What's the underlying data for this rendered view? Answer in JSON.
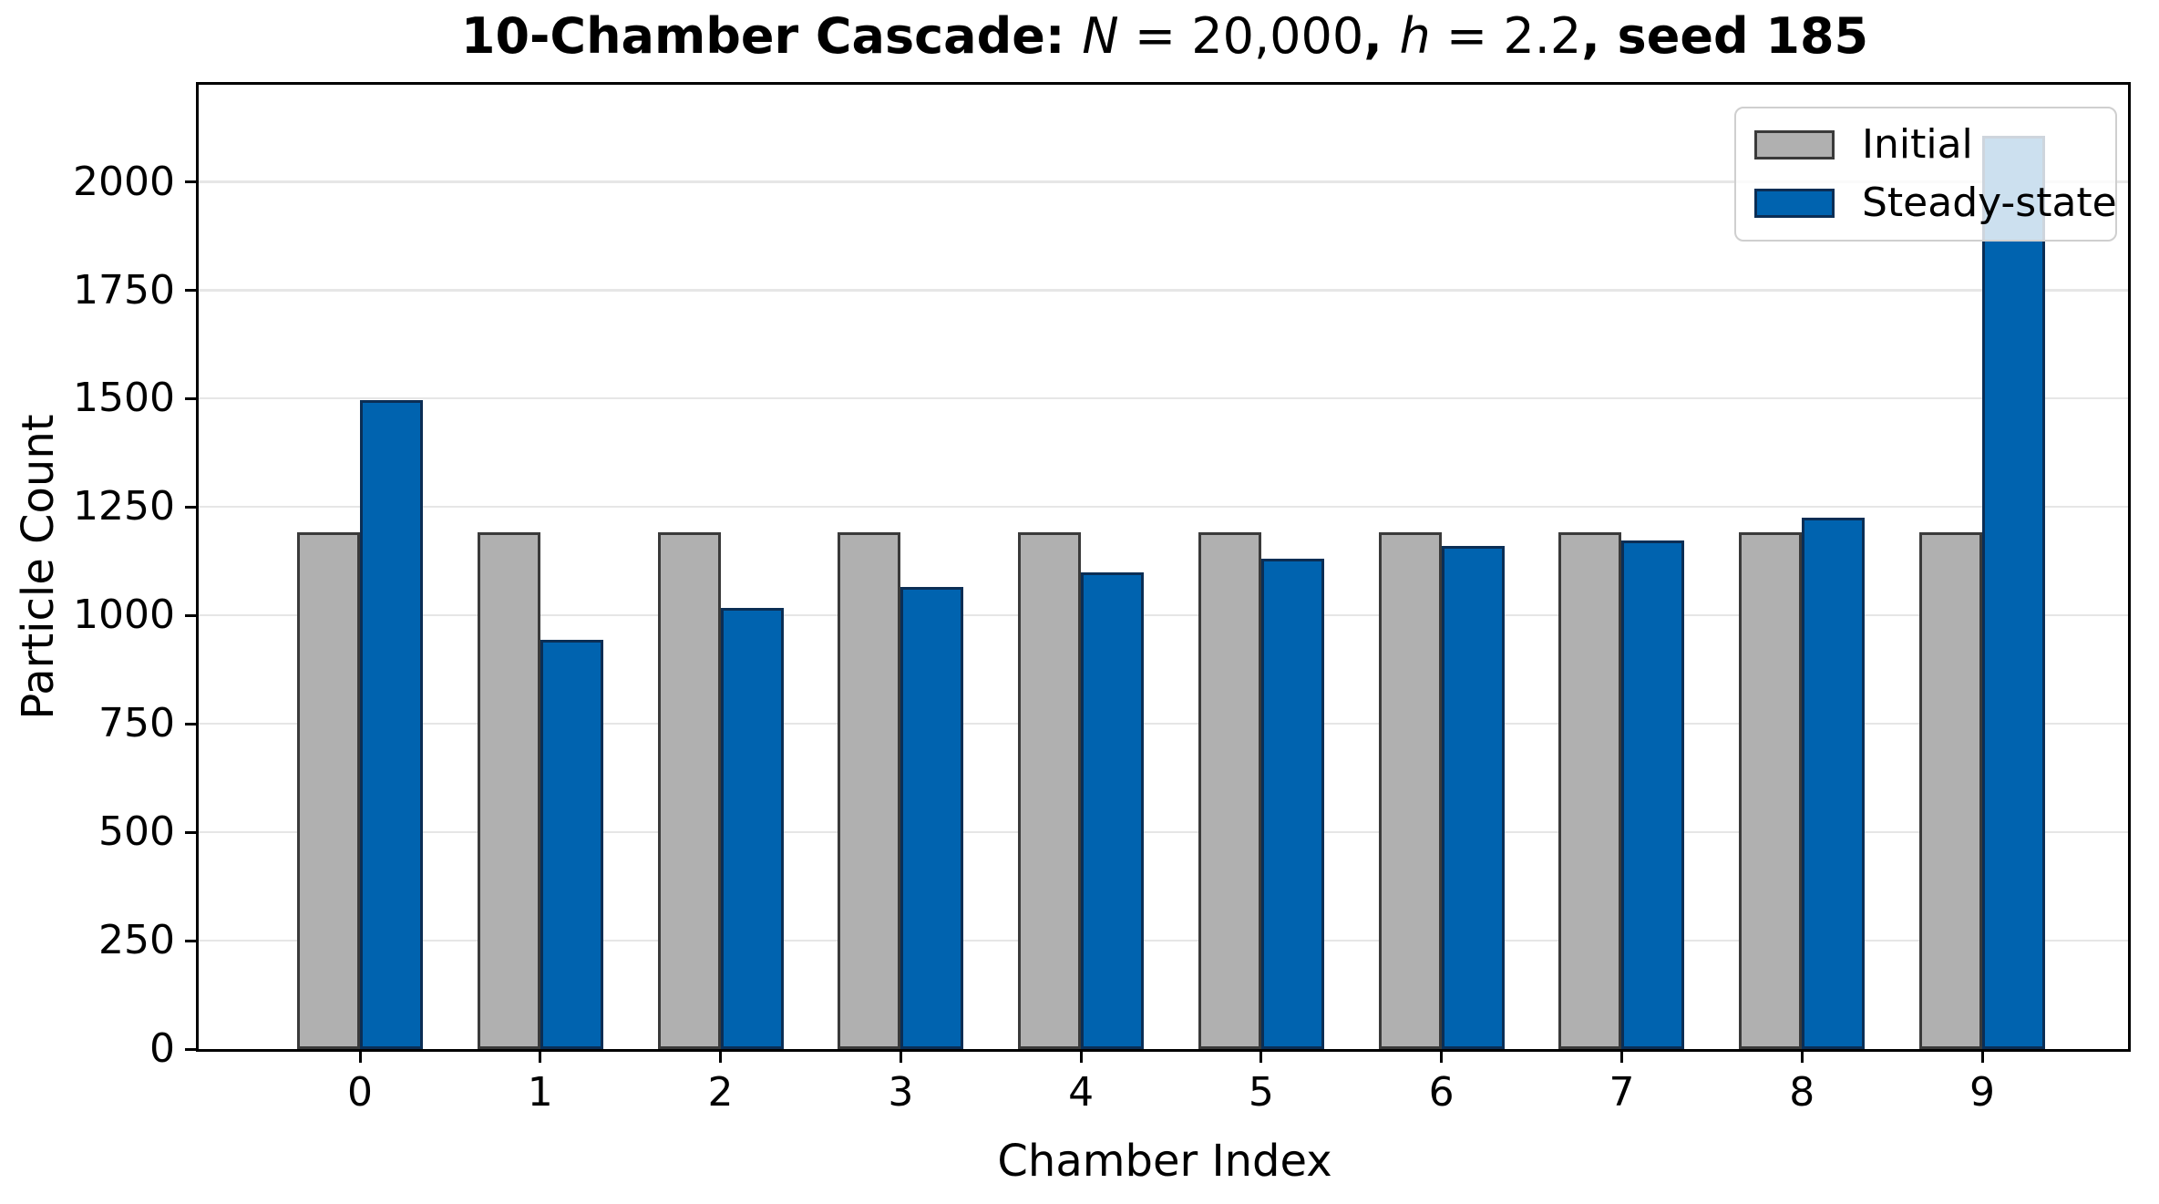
{
  "title": {
    "text": "10-Chamber Cascade: N = 20,000, h = 2.2, seed 185",
    "segments": [
      {
        "text": "10-Chamber Cascade: ",
        "style": "bold"
      },
      {
        "text": "N",
        "style": "italic"
      },
      {
        "text": " = 20,000",
        "style": "regular"
      },
      {
        "text": ", ",
        "style": "bold"
      },
      {
        "text": "h",
        "style": "italic"
      },
      {
        "text": " = 2.2",
        "style": "regular"
      },
      {
        "text": ", seed 185",
        "style": "bold"
      }
    ]
  },
  "axes": {
    "xlabel": "Chamber Index",
    "ylabel": "Particle Count",
    "x_tick_labels": [
      "0",
      "1",
      "2",
      "3",
      "4",
      "5",
      "6",
      "7",
      "8",
      "9"
    ],
    "y_ticks": [
      0,
      250,
      500,
      750,
      1000,
      1250,
      1500,
      1750,
      2000
    ],
    "ylim": [
      0,
      2224
    ],
    "grid": "horizontal major, light gray"
  },
  "legend": {
    "position": "upper right",
    "items": [
      {
        "label": "Initial",
        "color": "#b0b0b0",
        "edge_color": "#3a3a3a"
      },
      {
        "label": "Steady-state",
        "color": "#0063af",
        "edge_color": "#0b2e55"
      }
    ]
  },
  "chart_data": {
    "type": "bar",
    "categories": [
      0,
      1,
      2,
      3,
      4,
      5,
      6,
      7,
      8,
      9
    ],
    "series": [
      {
        "name": "Initial",
        "color": "#b0b0b0",
        "edge_color": "#3a3a3a",
        "values": [
          1192,
          1192,
          1192,
          1192,
          1192,
          1192,
          1192,
          1192,
          1192,
          1192
        ]
      },
      {
        "name": "Steady-state",
        "color": "#0063af",
        "edge_color": "#0b2e55",
        "values": [
          1497,
          943,
          1017,
          1066,
          1099,
          1130,
          1160,
          1174,
          1226,
          2107
        ]
      }
    ],
    "title": "10-Chamber Cascade: N = 20,000, h = 2.2, seed 185",
    "xlabel": "Chamber Index",
    "ylabel": "Particle Count",
    "ylim": [
      0,
      2224
    ],
    "legend_position": "upper right"
  }
}
